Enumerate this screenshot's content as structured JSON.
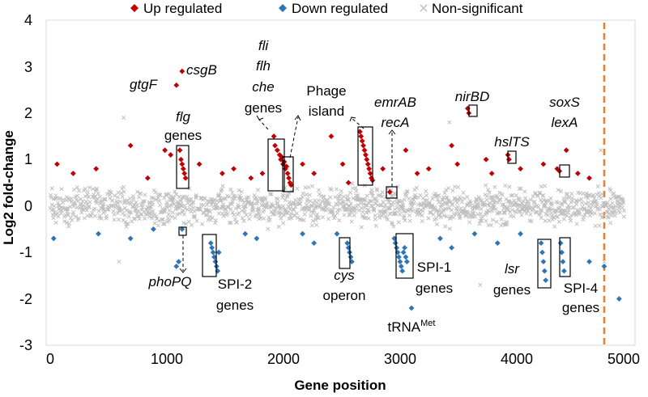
{
  "chart_data": {
    "type": "scatter",
    "title": "",
    "xlabel": "Gene position",
    "ylabel": "Log2 fold-change",
    "xlim": [
      0,
      5000
    ],
    "ylim": [
      -3,
      4
    ],
    "x_ticks": [
      "0",
      "1000",
      "2000",
      "3000",
      "4000",
      "5000"
    ],
    "y_ticks": [
      "4",
      "3",
      "2",
      "1",
      "0",
      "-1",
      "-2",
      "-3"
    ],
    "grid": false,
    "legend_position": "top",
    "colors": {
      "up": "#c00000",
      "down": "#2e75b6",
      "ns": "#bfbfbf",
      "divider": "#ed7d31"
    },
    "divider_x": 4830,
    "series": [
      {
        "name": "Up regulated",
        "marker": "diamond",
        "points": [
          [
            1100,
            2.6
          ],
          [
            1150,
            2.9
          ],
          [
            1130,
            1.2
          ],
          [
            1140,
            1.0
          ],
          [
            1150,
            0.9
          ],
          [
            1160,
            0.8
          ],
          [
            1170,
            0.7
          ],
          [
            1180,
            0.6
          ],
          [
            1950,
            1.5
          ],
          [
            1960,
            1.3
          ],
          [
            1980,
            1.2
          ],
          [
            2000,
            1.1
          ],
          [
            2010,
            1.0
          ],
          [
            2020,
            1.05
          ],
          [
            2030,
            0.9
          ],
          [
            2040,
            0.95
          ],
          [
            2050,
            0.8
          ],
          [
            2060,
            0.85
          ],
          [
            2070,
            0.7
          ],
          [
            2080,
            0.6
          ],
          [
            2090,
            0.5
          ],
          [
            2100,
            0.45
          ],
          [
            2700,
            1.6
          ],
          [
            2710,
            1.5
          ],
          [
            2720,
            1.4
          ],
          [
            2730,
            1.3
          ],
          [
            2740,
            1.2
          ],
          [
            2750,
            1.1
          ],
          [
            2760,
            1.0
          ],
          [
            2770,
            0.9
          ],
          [
            2780,
            0.8
          ],
          [
            2790,
            0.7
          ],
          [
            2800,
            0.6
          ],
          [
            2810,
            0.55
          ],
          [
            2960,
            0.3
          ],
          [
            3640,
            2.1
          ],
          [
            3650,
            2.0
          ],
          [
            3990,
            1.1
          ],
          [
            4000,
            1.0
          ],
          [
            4420,
            0.8
          ],
          [
            4440,
            0.75
          ],
          [
            60,
            0.9
          ],
          [
            200,
            0.7
          ],
          [
            400,
            0.8
          ],
          [
            700,
            1.3
          ],
          [
            850,
            0.6
          ],
          [
            1000,
            1.2
          ],
          [
            1050,
            1.1
          ],
          [
            1300,
            0.9
          ],
          [
            1500,
            0.7
          ],
          [
            1600,
            0.8
          ],
          [
            1750,
            0.6
          ],
          [
            1850,
            0.7
          ],
          [
            2200,
            0.9
          ],
          [
            2300,
            0.7
          ],
          [
            2450,
            1.5
          ],
          [
            2550,
            0.9
          ],
          [
            2900,
            0.8
          ],
          [
            3100,
            1.2
          ],
          [
            3200,
            0.7
          ],
          [
            3300,
            0.8
          ],
          [
            3500,
            1.3
          ],
          [
            3550,
            0.9
          ],
          [
            3800,
            1.0
          ],
          [
            3850,
            0.7
          ],
          [
            4100,
            0.8
          ],
          [
            4300,
            0.9
          ],
          [
            4500,
            1.2
          ],
          [
            4600,
            0.7
          ],
          [
            4700,
            0.6
          ],
          [
            2600,
            0.5
          ]
        ]
      },
      {
        "name": "Down regulated",
        "marker": "diamond",
        "points": [
          [
            1150,
            -0.5
          ],
          [
            1400,
            -0.8
          ],
          [
            1410,
            -0.9
          ],
          [
            1420,
            -1.0
          ],
          [
            1430,
            -1.1
          ],
          [
            1440,
            -1.2
          ],
          [
            1450,
            -1.3
          ],
          [
            1460,
            -1.4
          ],
          [
            1470,
            -1.0
          ],
          [
            2590,
            -0.8
          ],
          [
            2600,
            -0.9
          ],
          [
            2610,
            -1.0
          ],
          [
            2620,
            -1.1
          ],
          [
            2630,
            -1.2
          ],
          [
            3000,
            -0.7
          ],
          [
            3010,
            -0.8
          ],
          [
            3020,
            -0.9
          ],
          [
            3030,
            -1.0
          ],
          [
            3040,
            -1.1
          ],
          [
            3050,
            -1.2
          ],
          [
            3060,
            -1.3
          ],
          [
            3070,
            -1.4
          ],
          [
            3080,
            -1.0
          ],
          [
            3090,
            -0.9
          ],
          [
            3100,
            -1.1
          ],
          [
            3110,
            -1.2
          ],
          [
            3150,
            -2.2
          ],
          [
            4280,
            -0.8
          ],
          [
            4290,
            -1.0
          ],
          [
            4300,
            -1.2
          ],
          [
            4310,
            -1.4
          ],
          [
            4320,
            -1.6
          ],
          [
            4450,
            -0.8
          ],
          [
            4460,
            -1.0
          ],
          [
            4470,
            -1.2
          ],
          [
            4480,
            -1.4
          ],
          [
            4960,
            -2.0
          ],
          [
            1100,
            -1.3
          ],
          [
            1120,
            -1.2
          ],
          [
            420,
            -0.6
          ],
          [
            700,
            -0.7
          ],
          [
            900,
            -0.5
          ],
          [
            1700,
            -0.6
          ],
          [
            1800,
            -0.7
          ],
          [
            2200,
            -0.6
          ],
          [
            2300,
            -0.8
          ],
          [
            2500,
            -0.6
          ],
          [
            3400,
            -0.7
          ],
          [
            3500,
            -0.9
          ],
          [
            3700,
            -0.6
          ],
          [
            3900,
            -0.8
          ],
          [
            4100,
            -0.6
          ],
          [
            4700,
            -1.2
          ],
          [
            30,
            -0.7
          ],
          [
            4830,
            -1.3
          ]
        ]
      },
      {
        "name": "Non-significant",
        "marker": "cross",
        "band": [
          -0.5,
          0.5
        ],
        "outliers": [
          [
            640,
            1.9
          ],
          [
            3480,
            1.8
          ],
          [
            4830,
            -1.2
          ],
          [
            3750,
            -1.7
          ],
          [
            600,
            -1.2
          ],
          [
            4800,
            1.2
          ]
        ]
      }
    ],
    "annotations": {
      "csgB": "csgB",
      "gtgF": "gtgF",
      "flg": "flg",
      "genes": "genes",
      "fli": "fli",
      "flh": "flh",
      "che": "che",
      "phage": "Phage",
      "island": "island",
      "emrAB": "emrAB",
      "recA": "recA",
      "nirBD": "nirBD",
      "hslTS": "hslTS",
      "soxS": "soxS",
      "lexA": "lexA",
      "phoPQ": "phoPQ",
      "spi2": "SPI-2",
      "cys": "cys",
      "operon": "operon",
      "trna": "tRNA",
      "trna_sup": "Met",
      "spi1": "SPI-1",
      "lsr": "lsr",
      "spi4": "SPI-4"
    }
  }
}
